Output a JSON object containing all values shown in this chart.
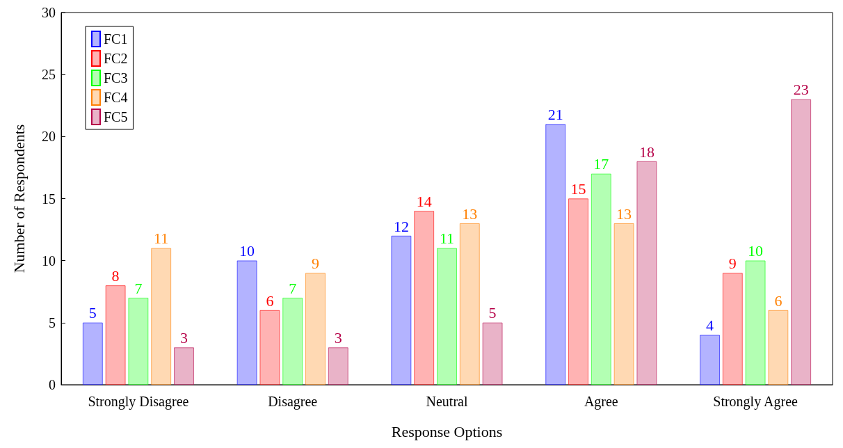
{
  "chart_data": {
    "type": "bar",
    "xlabel": "Response Options",
    "ylabel": "Number of Respondents",
    "categories": [
      "Strongly Disagree",
      "Disagree",
      "Neutral",
      "Agree",
      "Strongly Agree"
    ],
    "series": [
      {
        "name": "FC1",
        "color": "#b3b3ff",
        "values": [
          5,
          10,
          12,
          21,
          4
        ]
      },
      {
        "name": "FC2",
        "color": "#ffb3b3",
        "values": [
          8,
          6,
          14,
          15,
          9
        ]
      },
      {
        "name": "FC3",
        "color": "#b3ffb3",
        "values": [
          7,
          7,
          11,
          17,
          10
        ]
      },
      {
        "name": "FC4",
        "color": "#ffd9b3",
        "values": [
          11,
          9,
          13,
          13,
          6
        ]
      },
      {
        "name": "FC5",
        "color": "#e9b3c8",
        "values": [
          3,
          3,
          5,
          18,
          23
        ]
      }
    ],
    "ylim": [
      0,
      30
    ],
    "yticks": [
      0,
      5,
      10,
      15,
      20,
      25,
      30
    ],
    "grid": false,
    "legend": "top left",
    "data_labels": true
  }
}
